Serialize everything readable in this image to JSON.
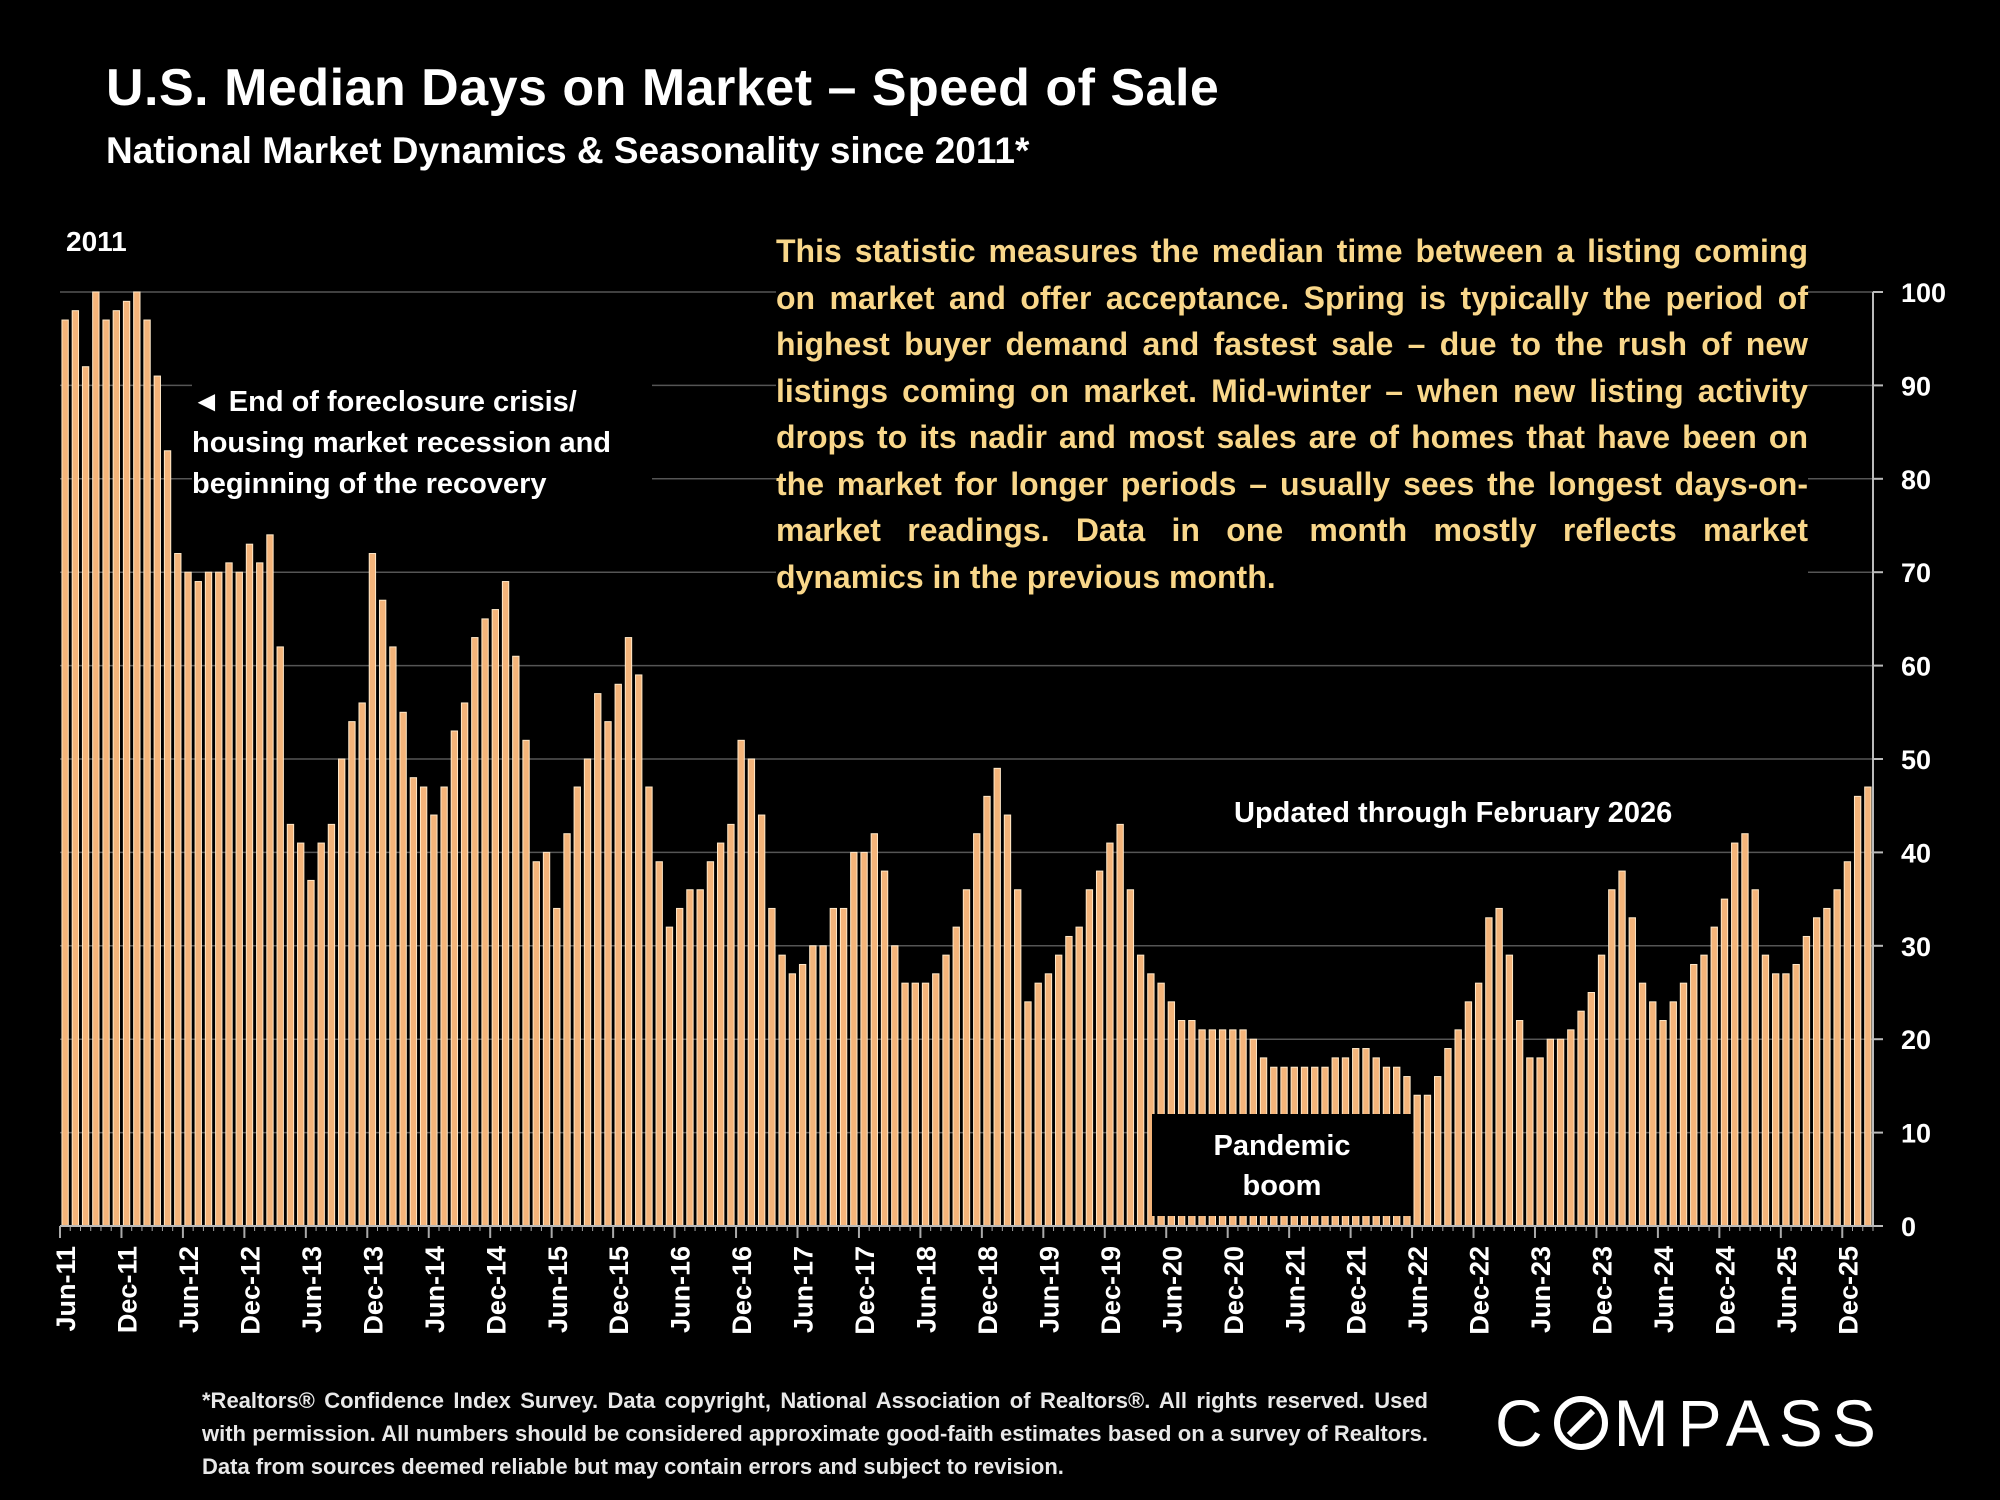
{
  "header": {
    "title": "U.S. Median Days on Market – Speed of Sale",
    "subtitle": "National Market Dynamics & Seasonality since 2011*"
  },
  "annotations": {
    "year_start": "2011",
    "recovery_note": "◄ End of foreclosure crisis/ housing market recession and beginning of the recovery",
    "description": "This statistic measures the median time between a listing coming on market and offer acceptance. Spring is typically the period of highest buyer demand and fastest sale – due to the rush of new listings coming on market. Mid-winter – when new listing activity drops to its nadir and most sales are of homes that have been on the market for longer periods – usually sees the longest days-on-market readings. Data in one month mostly reflects market dynamics in the previous month.",
    "updated": "Updated through February 2026",
    "pandemic_line1": "Pandemic",
    "pandemic_line2": "boom"
  },
  "footnote": "*Realtors® Confidence Index Survey. Data copyright, National Association of Realtors®. All rights reserved. Used with permission. All numbers should be considered approximate good-faith estimates based on a survey of Realtors. Data from sources deemed reliable but may contain errors and subject to revision.",
  "logo": {
    "before": "C",
    "after": "MPASS"
  },
  "colors": {
    "bar_fill": "#f4b47a",
    "bar_edge": "#ffe8c8",
    "gridline": "#555555",
    "description_text": "#f9d78a"
  },
  "chart_data": {
    "type": "bar",
    "title": "U.S. Median Days on Market – Speed of Sale",
    "xlabel": "",
    "ylabel": "",
    "ylim": [
      0,
      100
    ],
    "y_ticks": [
      0,
      10,
      20,
      30,
      40,
      50,
      60,
      70,
      80,
      90,
      100
    ],
    "y_axis_side": "right",
    "grid": true,
    "legend": "none",
    "x_tick_labels": [
      "Jun-11",
      "Dec-11",
      "Jun-12",
      "Dec-12",
      "Jun-13",
      "Dec-13",
      "Jun-14",
      "Dec-14",
      "Jun-15",
      "Dec-15",
      "Jun-16",
      "Dec-16",
      "Jun-17",
      "Dec-17",
      "Jun-18",
      "Dec-18",
      "Jun-19",
      "Dec-19",
      "Jun-20",
      "Dec-20",
      "Jun-21",
      "Dec-21",
      "Jun-22",
      "Dec-22",
      "Jun-23",
      "Dec-23",
      "Jun-24",
      "Dec-24",
      "Jun-25",
      "Dec-25"
    ],
    "first_month": "Jun-11",
    "last_month": "Feb-26",
    "values": [
      97,
      98,
      92,
      100,
      97,
      98,
      99,
      100,
      97,
      91,
      83,
      72,
      70,
      69,
      70,
      70,
      71,
      70,
      73,
      71,
      74,
      62,
      43,
      41,
      37,
      41,
      43,
      50,
      54,
      56,
      72,
      67,
      62,
      55,
      48,
      47,
      44,
      47,
      53,
      56,
      63,
      65,
      66,
      69,
      61,
      52,
      39,
      40,
      34,
      42,
      47,
      50,
      57,
      54,
      58,
      63,
      59,
      47,
      39,
      32,
      34,
      36,
      36,
      39,
      41,
      43,
      52,
      50,
      44,
      34,
      29,
      27,
      28,
      30,
      30,
      34,
      34,
      40,
      40,
      42,
      38,
      30,
      26,
      26,
      26,
      27,
      29,
      32,
      36,
      42,
      46,
      49,
      44,
      36,
      24,
      26,
      27,
      29,
      31,
      32,
      36,
      38,
      41,
      43,
      36,
      29,
      27,
      26,
      24,
      22,
      22,
      21,
      21,
      21,
      21,
      21,
      20,
      18,
      17,
      17,
      17,
      17,
      17,
      17,
      18,
      18,
      19,
      19,
      18,
      17,
      17,
      16,
      14,
      14,
      16,
      19,
      21,
      24,
      26,
      33,
      34,
      29,
      22,
      18,
      18,
      20,
      20,
      21,
      23,
      25,
      29,
      36,
      38,
      33,
      26,
      24,
      22,
      24,
      26,
      28,
      29,
      32,
      35,
      41,
      42,
      36,
      29,
      27,
      27,
      28,
      31,
      33,
      34,
      36,
      39,
      46,
      47
    ]
  }
}
